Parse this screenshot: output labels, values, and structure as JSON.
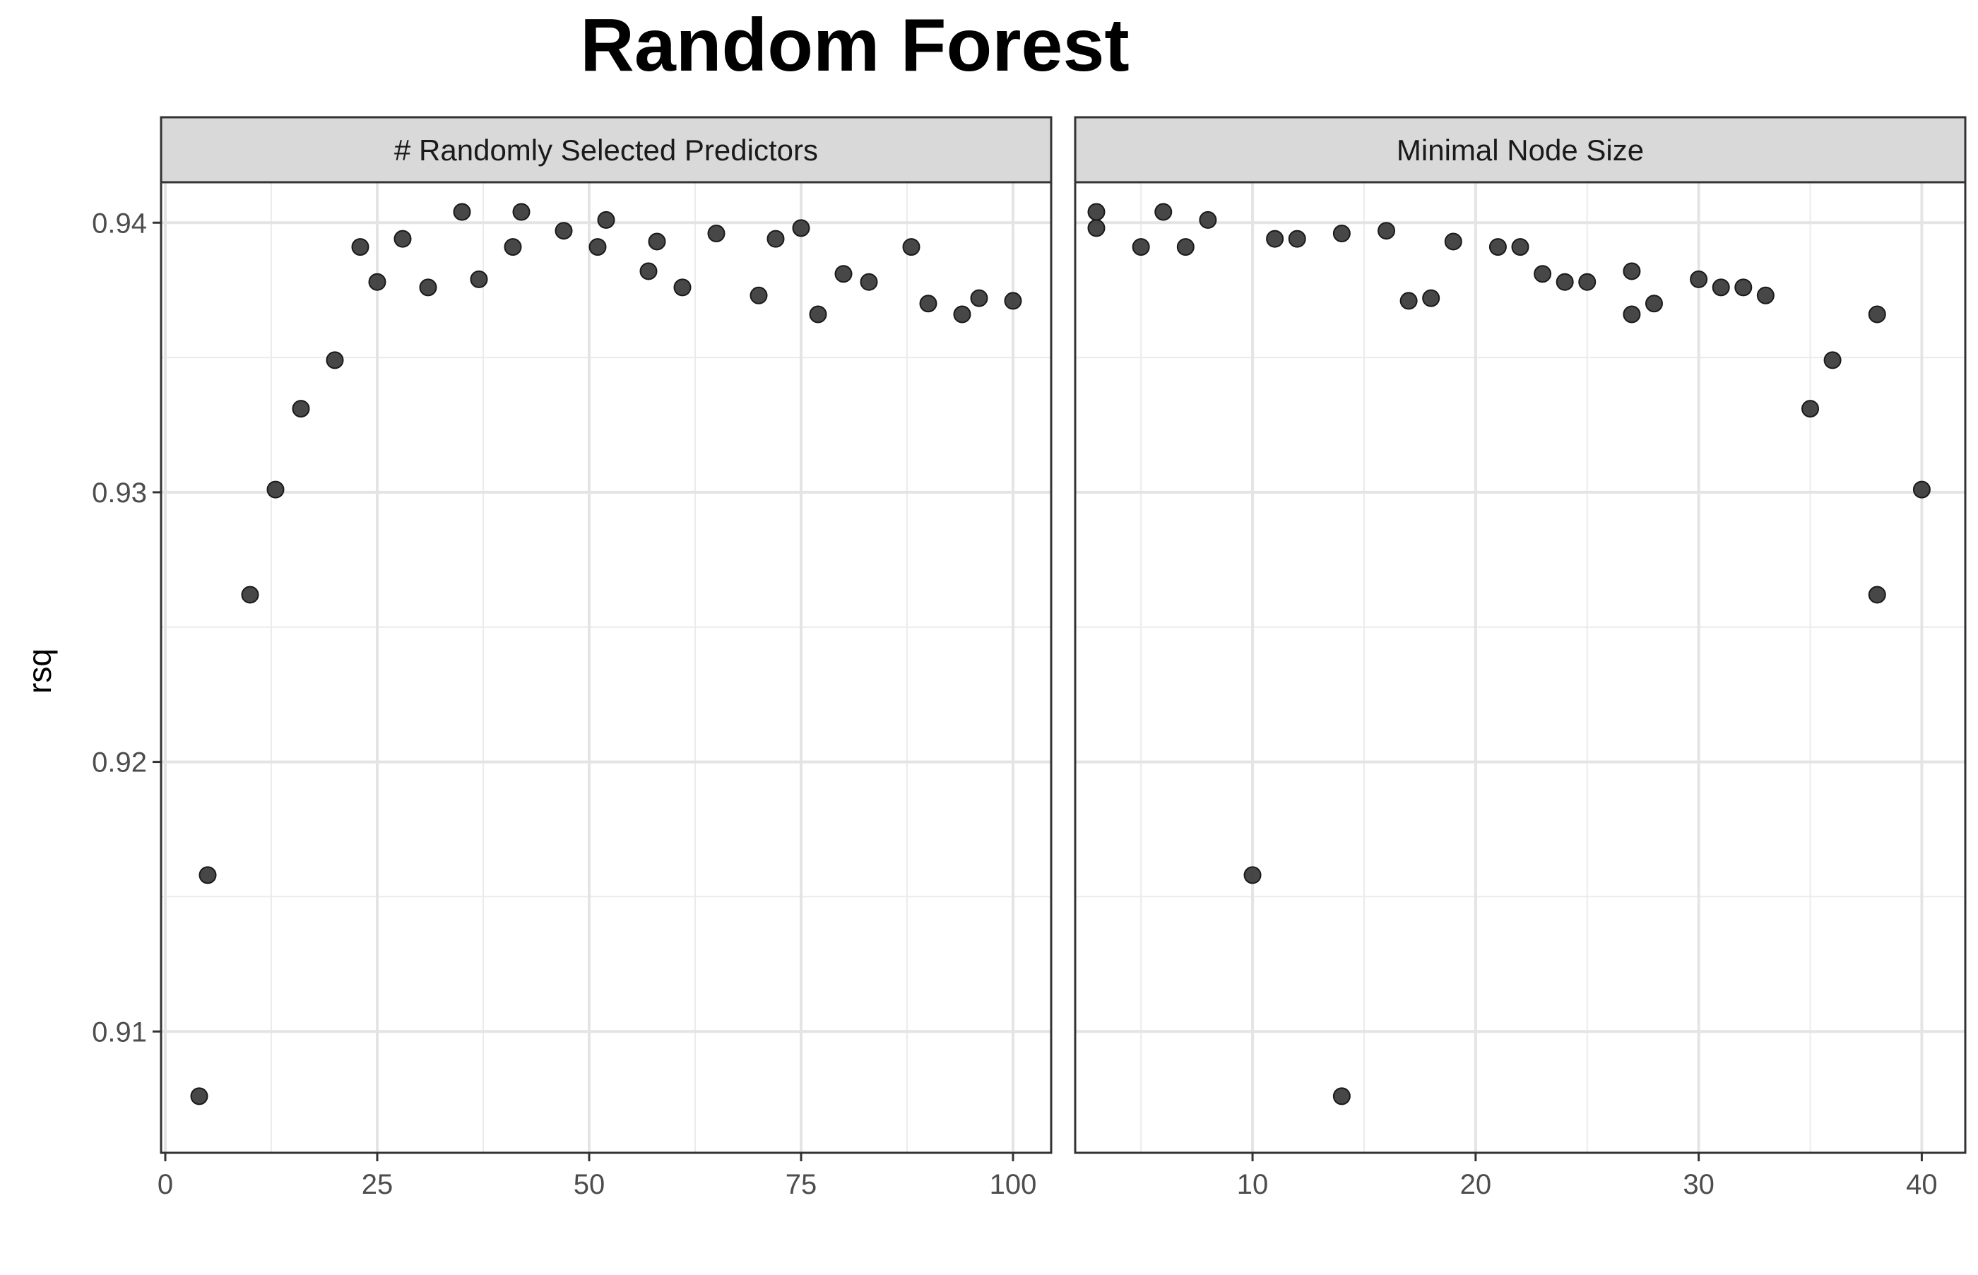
{
  "chart_data": {
    "type": "scatter",
    "title": "Random Forest",
    "ylabel": "rsq",
    "ylim": [
      0.9055,
      0.9415
    ],
    "y_ticks": [
      0.91,
      0.92,
      0.93,
      0.94
    ],
    "y_tick_labels": [
      "0.91",
      "0.92",
      "0.93",
      "0.94"
    ],
    "grid": true,
    "point_color": "#333333",
    "panels": [
      {
        "strip_label": "# Randomly Selected Predictors",
        "xlim": [
          -0.5,
          104.5
        ],
        "x_ticks": [
          0,
          25,
          50,
          75,
          100
        ],
        "x_tick_labels": [
          "0",
          "25",
          "50",
          "75",
          "100"
        ],
        "points": [
          [
            4,
            0.9076
          ],
          [
            5,
            0.9158
          ],
          [
            10,
            0.9262
          ],
          [
            13,
            0.9301
          ],
          [
            16,
            0.9331
          ],
          [
            20,
            0.9349
          ],
          [
            23,
            0.9391
          ],
          [
            25,
            0.9378
          ],
          [
            28,
            0.9394
          ],
          [
            31,
            0.9376
          ],
          [
            35,
            0.9404
          ],
          [
            37,
            0.9379
          ],
          [
            41,
            0.9391
          ],
          [
            42,
            0.9404
          ],
          [
            47,
            0.9397
          ],
          [
            51,
            0.9391
          ],
          [
            52,
            0.9401
          ],
          [
            57,
            0.9382
          ],
          [
            58,
            0.9393
          ],
          [
            61,
            0.9376
          ],
          [
            65,
            0.9396
          ],
          [
            70,
            0.9373
          ],
          [
            72,
            0.9394
          ],
          [
            75,
            0.9398
          ],
          [
            77,
            0.9366
          ],
          [
            80,
            0.9381
          ],
          [
            83,
            0.9378
          ],
          [
            88,
            0.9391
          ],
          [
            90,
            0.937
          ],
          [
            94,
            0.9366
          ],
          [
            96,
            0.9372
          ],
          [
            100,
            0.9371
          ]
        ]
      },
      {
        "strip_label": "Minimal Node Size",
        "xlim": [
          2.05,
          41.95
        ],
        "x_ticks": [
          10,
          20,
          30,
          40
        ],
        "x_tick_labels": [
          "10",
          "20",
          "30",
          "40"
        ],
        "points": [
          [
            3,
            0.9404
          ],
          [
            3,
            0.9398
          ],
          [
            5,
            0.9391
          ],
          [
            6,
            0.9404
          ],
          [
            7,
            0.9391
          ],
          [
            8,
            0.9401
          ],
          [
            10,
            0.9158
          ],
          [
            11,
            0.9394
          ],
          [
            12,
            0.9394
          ],
          [
            14,
            0.9396
          ],
          [
            14,
            0.9076
          ],
          [
            16,
            0.9397
          ],
          [
            17,
            0.9371
          ],
          [
            18,
            0.9372
          ],
          [
            19,
            0.9393
          ],
          [
            21,
            0.9391
          ],
          [
            22,
            0.9391
          ],
          [
            23,
            0.9381
          ],
          [
            24,
            0.9378
          ],
          [
            25,
            0.9378
          ],
          [
            27,
            0.9382
          ],
          [
            27,
            0.9366
          ],
          [
            28,
            0.937
          ],
          [
            30,
            0.9379
          ],
          [
            31,
            0.9376
          ],
          [
            32,
            0.9376
          ],
          [
            33,
            0.9373
          ],
          [
            35,
            0.9331
          ],
          [
            36,
            0.9349
          ],
          [
            38,
            0.9366
          ],
          [
            38,
            0.9262
          ],
          [
            40,
            0.9301
          ]
        ]
      }
    ]
  }
}
